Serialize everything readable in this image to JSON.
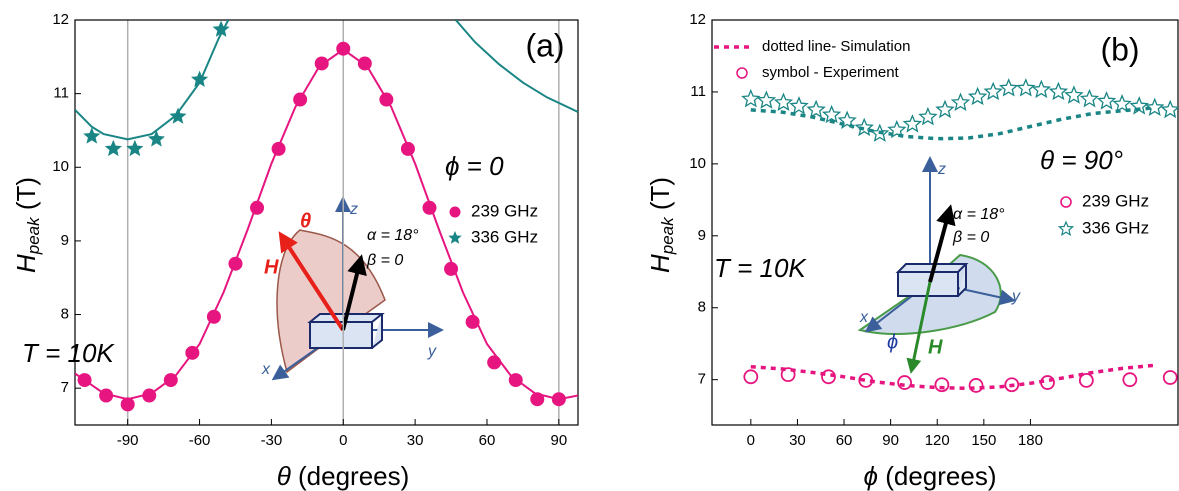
{
  "chart_data": [
    {
      "type": "scatter",
      "panel_label": "(a)",
      "xlabel": {
        "symbol": "θ",
        "text": " (degrees)"
      },
      "ylabel": {
        "symbol": "H",
        "subscript": "peak",
        "text": " (T)"
      },
      "xlim": [
        -112,
        98
      ],
      "ylim": [
        6.5,
        12
      ],
      "xticks": [
        -90,
        -60,
        -30,
        0,
        30,
        60,
        90
      ],
      "yticks": [
        7,
        8,
        9,
        10,
        11,
        12
      ],
      "x_reference_lines": [
        -90,
        0,
        90
      ],
      "legend_title": "ϕ = 0",
      "series": [
        {
          "name": "239 GHz",
          "color": "#e6157f",
          "marker": "filled-circle",
          "x": [
            -108,
            -99,
            -90,
            -81,
            -72,
            -63,
            -54,
            -45,
            -36,
            -27,
            -18,
            -9,
            0,
            9,
            18,
            27,
            36,
            45,
            54,
            63,
            72,
            81,
            90
          ],
          "values": [
            7.11,
            6.9,
            6.78,
            6.9,
            7.11,
            7.48,
            7.97,
            8.69,
            9.45,
            10.25,
            10.92,
            11.41,
            11.61,
            11.41,
            10.92,
            10.25,
            9.45,
            8.62,
            7.9,
            7.35,
            7.11,
            6.85,
            6.85
          ]
        },
        {
          "name": "336 GHz",
          "color": "#1a8585",
          "marker": "filled-star",
          "x": [
            -105,
            -96,
            -87,
            -78,
            -69,
            -60,
            -51
          ],
          "values": [
            10.42,
            10.25,
            10.25,
            10.38,
            10.69,
            11.19,
            11.87
          ]
        },
        {
          "color": "#e6157f",
          "style": "solid-line",
          "x": [
            -112,
            -100,
            -90,
            -80,
            -70,
            -60,
            -50,
            -40,
            -30,
            -20,
            -10,
            0,
            10,
            20,
            30,
            40,
            50,
            60,
            70,
            80,
            90,
            98
          ],
          "values": [
            7.2,
            6.93,
            6.85,
            6.93,
            7.17,
            7.6,
            8.3,
            9.15,
            10.05,
            10.82,
            11.37,
            11.6,
            11.37,
            10.82,
            10.05,
            9.15,
            8.3,
            7.6,
            7.17,
            6.93,
            6.85,
            6.9
          ]
        },
        {
          "color": "#1a8585",
          "style": "solid-line",
          "x": [
            -112,
            -105,
            -100,
            -90,
            -80,
            -70,
            -60,
            -52,
            -48
          ],
          "values": [
            10.78,
            10.55,
            10.45,
            10.38,
            10.45,
            10.7,
            11.15,
            11.75,
            12.0
          ]
        },
        {
          "color": "#1a8585",
          "style": "solid-line",
          "x": [
            47,
            55,
            65,
            75,
            85,
            98
          ],
          "values": [
            12.0,
            11.7,
            11.4,
            11.15,
            10.95,
            10.75
          ]
        }
      ],
      "annotations": [
        "T = 10K",
        "z",
        "y",
        "x",
        "θ",
        "H",
        "α = 18°",
        "β = 0"
      ]
    },
    {
      "type": "scatter",
      "panel_label": "(b)",
      "xlabel": {
        "symbol": "ϕ",
        "text": " (degrees)"
      },
      "ylabel": {
        "symbol": "H",
        "subscript": "peak",
        "text": " (T)"
      },
      "xlim": [
        -25,
        275
      ],
      "ylim": [
        6.37,
        12
      ],
      "xticks": [
        0,
        30,
        60,
        90,
        120,
        150,
        180
      ],
      "yticks": [
        7,
        8,
        9,
        10,
        11,
        12
      ],
      "legend_title": "θ = 90°",
      "legend_notes": [
        "dotted line- Simulation",
        "symbol - Experiment"
      ],
      "series": [
        {
          "name": "239 GHz",
          "color": "#e6157f",
          "marker": "open-circle",
          "x": [
            0,
            24,
            50,
            74,
            99,
            123,
            145,
            168,
            191,
            216,
            244,
            270
          ],
          "values": [
            7.04,
            7.07,
            7.04,
            6.99,
            6.96,
            6.93,
            6.92,
            6.93,
            6.96,
            6.99,
            7.0,
            7.03
          ]
        },
        {
          "name": "336 GHz",
          "color": "#1a8585",
          "marker": "open-star",
          "x": [
            0,
            10,
            21,
            31,
            42,
            52,
            62,
            73,
            83,
            94,
            104,
            114,
            125,
            135,
            146,
            156,
            166,
            177,
            187,
            198,
            208,
            218,
            229,
            239,
            250,
            260,
            270
          ],
          "values": [
            10.9,
            10.88,
            10.85,
            10.8,
            10.75,
            10.68,
            10.6,
            10.5,
            10.42,
            10.47,
            10.55,
            10.65,
            10.75,
            10.85,
            10.93,
            11.0,
            11.05,
            11.05,
            11.03,
            11.0,
            10.95,
            10.9,
            10.87,
            10.83,
            10.8,
            10.78,
            10.75
          ]
        },
        {
          "color": "#e6157f",
          "style": "dotted-line",
          "x": [
            0,
            20,
            40,
            60,
            80,
            100,
            120,
            140,
            160,
            180,
            200,
            220,
            240,
            260
          ],
          "values": [
            7.18,
            7.15,
            7.1,
            7.04,
            6.97,
            6.92,
            6.89,
            6.88,
            6.9,
            6.95,
            7.02,
            7.1,
            7.16,
            7.2
          ]
        },
        {
          "color": "#1a8585",
          "style": "dotted-line",
          "x": [
            0,
            20,
            40,
            60,
            80,
            100,
            120,
            140,
            160,
            180,
            200,
            220,
            240,
            260
          ],
          "values": [
            10.75,
            10.72,
            10.65,
            10.55,
            10.45,
            10.38,
            10.35,
            10.36,
            10.42,
            10.52,
            10.62,
            10.7,
            10.74,
            10.78
          ]
        }
      ],
      "annotations": [
        "T = 10K",
        "z",
        "y",
        "x",
        "ϕ",
        "H",
        "α = 18°",
        "β = 0"
      ]
    }
  ]
}
